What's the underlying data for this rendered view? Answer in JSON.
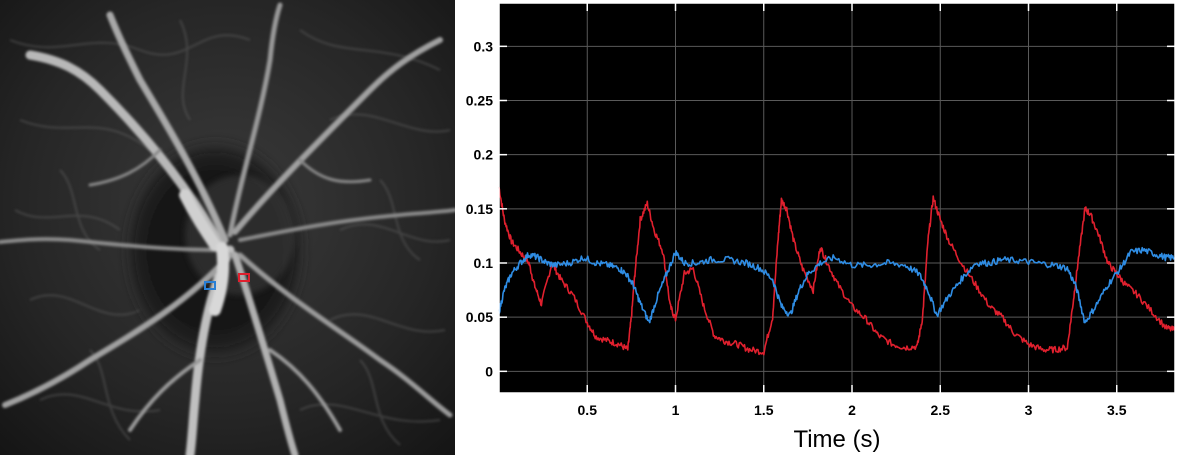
{
  "fundus": {
    "markers": [
      {
        "color": "#2a7fd4"
      },
      {
        "color": "#e0202e"
      }
    ]
  },
  "chart_data": {
    "type": "line",
    "title": "",
    "xlabel": "Time (s)",
    "ylabel": "",
    "xlim": [
      0,
      3.83
    ],
    "ylim": [
      -0.02,
      0.34
    ],
    "xticks": [
      0.5,
      1,
      1.5,
      2,
      2.5,
      3,
      3.5
    ],
    "xtick_labels": [
      "0.5",
      "1",
      "1.5",
      "2",
      "2.5",
      "3",
      "3.5"
    ],
    "yticks": [
      0,
      0.05,
      0.1,
      0.15,
      0.2,
      0.25,
      0.3
    ],
    "ytick_labels": [
      "0",
      "0.05",
      "0.1",
      "0.15",
      "0.2",
      "0.25",
      "0.3"
    ],
    "grid": true,
    "background": "#000000",
    "series": [
      {
        "color": "#e0202e",
        "x": [
          0,
          0.03,
          0.07,
          0.12,
          0.17,
          0.2,
          0.24,
          0.3,
          0.35,
          0.42,
          0.5,
          0.55,
          0.62,
          0.68,
          0.73,
          0.75,
          0.77,
          0.8,
          0.84,
          0.88,
          0.93,
          0.97,
          1.0,
          1.05,
          1.1,
          1.16,
          1.22,
          1.28,
          1.35,
          1.42,
          1.5,
          1.55,
          1.58,
          1.6,
          1.63,
          1.67,
          1.72,
          1.78,
          1.82,
          1.86,
          1.92,
          2.0,
          2.08,
          2.15,
          2.23,
          2.3,
          2.37,
          2.4,
          2.43,
          2.46,
          2.5,
          2.55,
          2.62,
          2.7,
          2.78,
          2.85,
          2.92,
          3.0,
          3.08,
          3.15,
          3.22,
          3.25,
          3.28,
          3.32,
          3.35,
          3.4,
          3.45,
          3.5,
          3.55,
          3.62,
          3.7,
          3.78,
          3.83
        ],
        "y": [
          0.17,
          0.14,
          0.12,
          0.11,
          0.1,
          0.08,
          0.062,
          0.1,
          0.085,
          0.07,
          0.045,
          0.032,
          0.028,
          0.025,
          0.02,
          0.05,
          0.09,
          0.14,
          0.155,
          0.13,
          0.11,
          0.06,
          0.048,
          0.09,
          0.095,
          0.06,
          0.033,
          0.028,
          0.025,
          0.02,
          0.018,
          0.05,
          0.12,
          0.158,
          0.15,
          0.12,
          0.095,
          0.075,
          0.115,
          0.1,
          0.08,
          0.06,
          0.048,
          0.033,
          0.025,
          0.022,
          0.023,
          0.05,
          0.12,
          0.16,
          0.14,
          0.12,
          0.1,
          0.08,
          0.06,
          0.05,
          0.035,
          0.025,
          0.02,
          0.02,
          0.022,
          0.06,
          0.1,
          0.15,
          0.145,
          0.125,
          0.1,
          0.09,
          0.08,
          0.07,
          0.055,
          0.04,
          0.038
        ]
      },
      {
        "color": "#2f8de4",
        "x": [
          0,
          0.03,
          0.07,
          0.12,
          0.17,
          0.22,
          0.27,
          0.32,
          0.4,
          0.48,
          0.55,
          0.62,
          0.68,
          0.72,
          0.76,
          0.8,
          0.85,
          0.9,
          0.95,
          1.0,
          1.05,
          1.12,
          1.2,
          1.3,
          1.4,
          1.48,
          1.55,
          1.6,
          1.65,
          1.7,
          1.75,
          1.82,
          1.9,
          2.0,
          2.1,
          2.2,
          2.3,
          2.38,
          2.43,
          2.48,
          2.55,
          2.62,
          2.7,
          2.78,
          2.85,
          2.95,
          3.05,
          3.15,
          3.22,
          3.27,
          3.32,
          3.38,
          3.45,
          3.52,
          3.58,
          3.65,
          3.72,
          3.78,
          3.83
        ],
        "y": [
          0.055,
          0.075,
          0.09,
          0.1,
          0.108,
          0.105,
          0.1,
          0.098,
          0.1,
          0.105,
          0.1,
          0.098,
          0.095,
          0.09,
          0.08,
          0.063,
          0.045,
          0.07,
          0.09,
          0.11,
          0.1,
          0.1,
          0.103,
          0.103,
          0.1,
          0.095,
          0.085,
          0.06,
          0.052,
          0.075,
          0.09,
          0.1,
          0.105,
          0.098,
          0.098,
          0.1,
          0.098,
          0.09,
          0.075,
          0.052,
          0.07,
          0.085,
          0.1,
          0.1,
          0.103,
          0.102,
          0.1,
          0.098,
          0.095,
          0.078,
          0.045,
          0.06,
          0.08,
          0.095,
          0.11,
          0.112,
          0.108,
          0.105,
          0.105
        ]
      }
    ]
  }
}
